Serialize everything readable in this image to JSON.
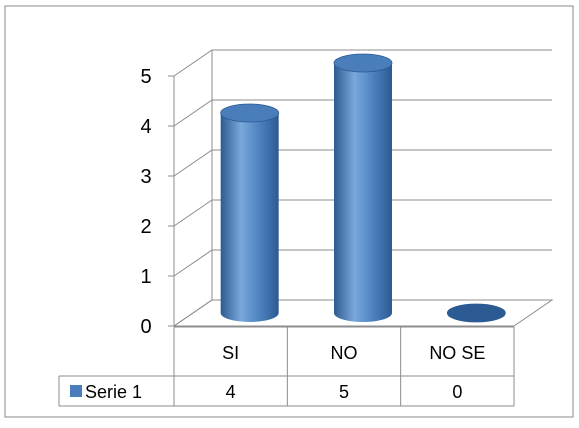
{
  "chart_data": {
    "type": "bar",
    "categories": [
      "SI",
      "NO",
      "NO SE"
    ],
    "series": [
      {
        "name": "Serie 1",
        "values": [
          4,
          5,
          0
        ]
      }
    ],
    "ylim": [
      0,
      5
    ],
    "yticks": [
      0,
      1,
      2,
      3,
      4,
      5
    ],
    "grid": true,
    "legend": "data-table-left",
    "bar_style": "3d-cylinder",
    "colors": {
      "bar": "#4a7ebb",
      "bar_dark": "#2c5a92",
      "bar_light": "#7aa8dc",
      "gridline": "#8c8c8c"
    }
  }
}
